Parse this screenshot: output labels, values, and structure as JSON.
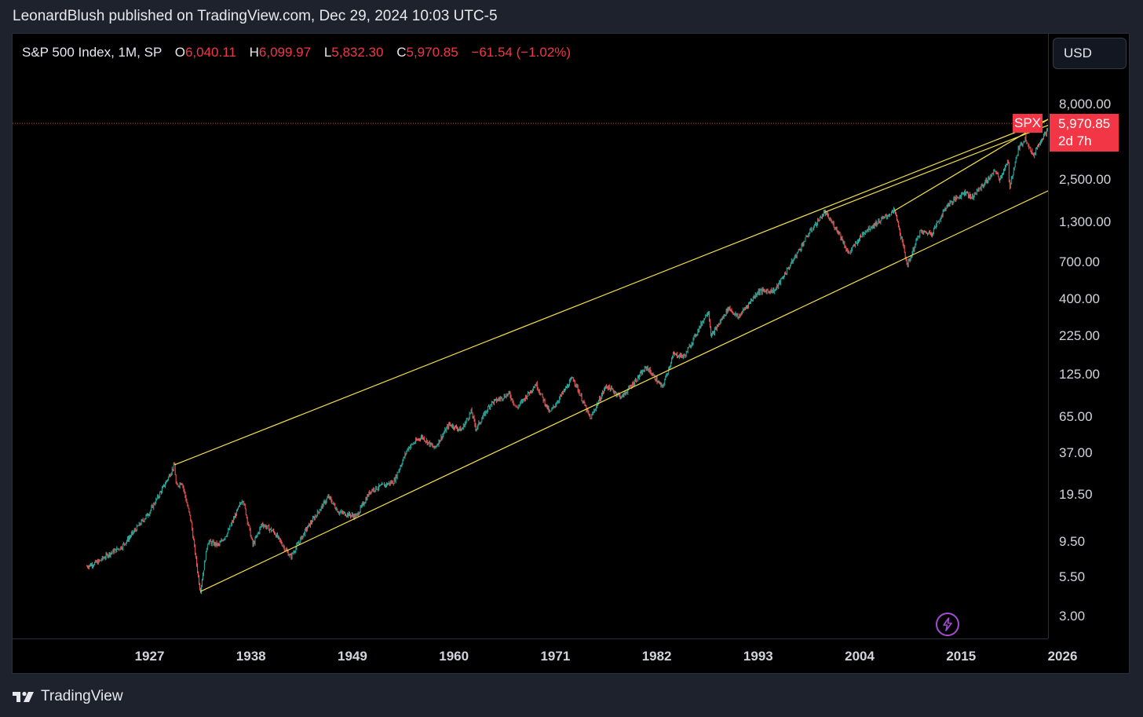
{
  "header": {
    "published_text": "LeonardBlush published on TradingView.com, Dec 29, 2024 10:03 UTC-5"
  },
  "legend": {
    "symbol": "S&P 500 Index, 1M, SP",
    "open_label": "O",
    "open": "6,040.11",
    "high_label": "H",
    "high": "6,099.97",
    "low_label": "L",
    "low": "5,832.30",
    "close_label": "C",
    "close": "5,970.85",
    "change": "−61.54 (−1.02%)"
  },
  "currency_button": "USD",
  "price_tag": {
    "symbol": "SPX",
    "price": "5,970.85",
    "countdown": "2d 7h"
  },
  "footer": {
    "brand": "TradingView"
  },
  "colors": {
    "background": "#000000",
    "up": "#26a69a",
    "down": "#ef5350",
    "trendline": "#f5e04a",
    "accent_red": "#f23645",
    "bolt": "#a64bd6"
  },
  "icons": {
    "replay": "lightning-bolt-icon",
    "logo": "tradingview-logo-icon"
  },
  "chart_data": {
    "type": "candlestick",
    "title": "S&P 500 Index, 1M, SP",
    "interval": "1M",
    "y_scale": "log",
    "ylim": [
      2.5,
      10000
    ],
    "xlim": [
      1920,
      2035
    ],
    "price_axis_labels": [
      "8,000.00",
      "2,500.00",
      "1,300.00",
      "700.00",
      "400.00",
      "225.00",
      "125.00",
      "65.00",
      "37.00",
      "19.50",
      "9.50",
      "5.50",
      "3.00"
    ],
    "price_axis_values": [
      8000,
      2500,
      1300,
      700,
      400,
      225,
      125,
      65,
      37,
      19.5,
      9.5,
      5.5,
      3.0
    ],
    "time_axis_labels": [
      "1927",
      "1938",
      "1949",
      "1960",
      "1971",
      "1982",
      "1993",
      "2004",
      "2015",
      "2026"
    ],
    "time_axis_values": [
      1927,
      1938,
      1949,
      1960,
      1971,
      1982,
      1993,
      2004,
      2015,
      2026
    ],
    "last_price": 5970.85,
    "price_series": [
      {
        "x": 1920.2,
        "y": 6.5
      },
      {
        "x": 1921.5,
        "y": 7.0
      },
      {
        "x": 1922.5,
        "y": 7.8
      },
      {
        "x": 1924,
        "y": 8.8
      },
      {
        "x": 1925.5,
        "y": 11.5
      },
      {
        "x": 1927,
        "y": 15.0
      },
      {
        "x": 1928.5,
        "y": 22.0
      },
      {
        "x": 1929.7,
        "y": 31.0
      },
      {
        "x": 1929.9,
        "y": 22.0
      },
      {
        "x": 1930.5,
        "y": 24.0
      },
      {
        "x": 1931.5,
        "y": 13.0
      },
      {
        "x": 1932.5,
        "y": 4.4
      },
      {
        "x": 1933.3,
        "y": 9.5
      },
      {
        "x": 1934.5,
        "y": 9.0
      },
      {
        "x": 1935.5,
        "y": 11.0
      },
      {
        "x": 1937.1,
        "y": 18.5
      },
      {
        "x": 1938.2,
        "y": 9.0
      },
      {
        "x": 1939.2,
        "y": 12.5
      },
      {
        "x": 1940.5,
        "y": 11.0
      },
      {
        "x": 1942.3,
        "y": 7.5
      },
      {
        "x": 1944,
        "y": 11.5
      },
      {
        "x": 1946.4,
        "y": 19.0
      },
      {
        "x": 1947.5,
        "y": 15.0
      },
      {
        "x": 1949.4,
        "y": 14.0
      },
      {
        "x": 1951,
        "y": 21.0
      },
      {
        "x": 1953.5,
        "y": 24.0
      },
      {
        "x": 1955,
        "y": 40.0
      },
      {
        "x": 1956.5,
        "y": 48.0
      },
      {
        "x": 1957.9,
        "y": 40.0
      },
      {
        "x": 1959.5,
        "y": 58.0
      },
      {
        "x": 1960.8,
        "y": 53.0
      },
      {
        "x": 1961.9,
        "y": 71.0
      },
      {
        "x": 1962.4,
        "y": 54.0
      },
      {
        "x": 1964,
        "y": 80.0
      },
      {
        "x": 1966,
        "y": 93.0
      },
      {
        "x": 1966.8,
        "y": 74.0
      },
      {
        "x": 1968.9,
        "y": 108.0
      },
      {
        "x": 1970.4,
        "y": 69.0
      },
      {
        "x": 1972.9,
        "y": 119.0
      },
      {
        "x": 1974.8,
        "y": 63.0
      },
      {
        "x": 1976.5,
        "y": 105.0
      },
      {
        "x": 1978.2,
        "y": 88.0
      },
      {
        "x": 1980.9,
        "y": 140.0
      },
      {
        "x": 1982.6,
        "y": 102.0
      },
      {
        "x": 1983.8,
        "y": 170.0
      },
      {
        "x": 1985,
        "y": 165.0
      },
      {
        "x": 1987.6,
        "y": 336.0
      },
      {
        "x": 1987.9,
        "y": 224.0
      },
      {
        "x": 1989.8,
        "y": 350.0
      },
      {
        "x": 1990.8,
        "y": 300.0
      },
      {
        "x": 1993,
        "y": 450.0
      },
      {
        "x": 1994.8,
        "y": 455.0
      },
      {
        "x": 1996.5,
        "y": 680.0
      },
      {
        "x": 1998.5,
        "y": 1100.0
      },
      {
        "x": 2000.2,
        "y": 1520.0
      },
      {
        "x": 2001.8,
        "y": 1100.0
      },
      {
        "x": 2002.8,
        "y": 800.0
      },
      {
        "x": 2004.5,
        "y": 1130.0
      },
      {
        "x": 2007.8,
        "y": 1560.0
      },
      {
        "x": 2009.2,
        "y": 670.0
      },
      {
        "x": 2010.5,
        "y": 1120.0
      },
      {
        "x": 2011.8,
        "y": 1100.0
      },
      {
        "x": 2013.5,
        "y": 1700.0
      },
      {
        "x": 2015.5,
        "y": 2100.0
      },
      {
        "x": 2016.1,
        "y": 1900.0
      },
      {
        "x": 2018.8,
        "y": 2900.0
      },
      {
        "x": 2019.1,
        "y": 2500.0
      },
      {
        "x": 2020.1,
        "y": 3300.0
      },
      {
        "x": 2020.25,
        "y": 2240.0
      },
      {
        "x": 2021.2,
        "y": 4000.0
      },
      {
        "x": 2022.0,
        "y": 4800.0
      },
      {
        "x": 2022.8,
        "y": 3600.0
      },
      {
        "x": 2023.5,
        "y": 4500.0
      },
      {
        "x": 2024.2,
        "y": 5200.0
      },
      {
        "x": 2024.95,
        "y": 5970.85
      }
    ],
    "trendlines": [
      {
        "from": {
          "x": 1929.7,
          "y": 31.0
        },
        "to": {
          "x": 2035,
          "y": 11500
        }
      },
      {
        "from": {
          "x": 1932.5,
          "y": 4.4
        },
        "to": {
          "x": 2035,
          "y": 4300
        }
      },
      {
        "from": {
          "x": 2007.8,
          "y": 1560.0
        },
        "to": {
          "x": 2035,
          "y": 15500
        }
      },
      {
        "from": {
          "x": 2000.2,
          "y": 1520.0
        },
        "to": {
          "x": 2024.95,
          "y": 5970.85
        }
      }
    ]
  }
}
